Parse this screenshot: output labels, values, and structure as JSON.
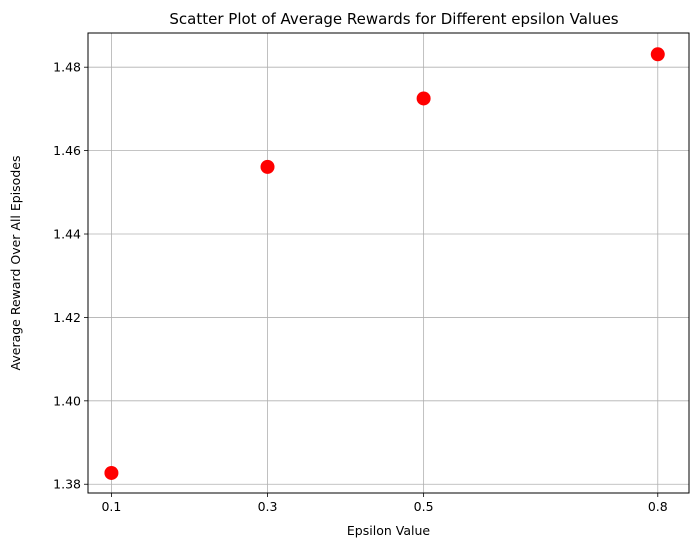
{
  "chart_data": {
    "type": "scatter",
    "title": "Scatter Plot of Average Rewards for Different epsilon Values",
    "xlabel": "Epsilon Value",
    "ylabel": "Average Reward Over All Episodes",
    "xlim": [
      0.07,
      0.84
    ],
    "ylim": [
      1.3779,
      1.4882
    ],
    "xticks": [
      0.1,
      0.3,
      0.5,
      0.8
    ],
    "xtick_labels": [
      "0.1",
      "0.3",
      "0.5",
      "0.8"
    ],
    "yticks": [
      1.38,
      1.4,
      1.42,
      1.44,
      1.46,
      1.48
    ],
    "ytick_labels": [
      "1.38",
      "1.40",
      "1.42",
      "1.44",
      "1.46",
      "1.48"
    ],
    "grid": true,
    "marker_color": "#ff0000",
    "x": [
      0.1,
      0.3,
      0.5,
      0.8
    ],
    "y": [
      1.3827,
      1.4561,
      1.4725,
      1.4831
    ]
  }
}
